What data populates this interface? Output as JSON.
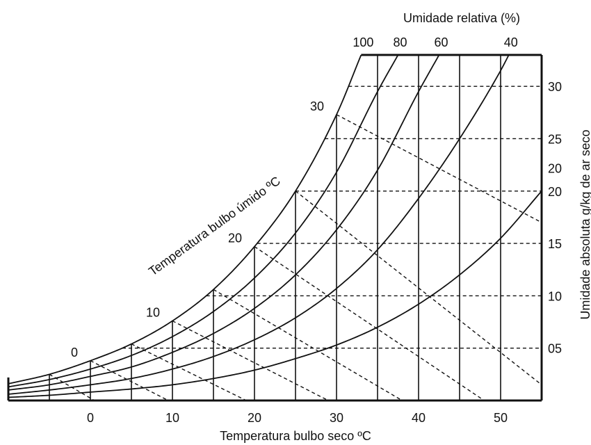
{
  "chart_data": {
    "type": "line",
    "title": "",
    "xlabel": "Temperatura bulbo seco ºC",
    "ylabel": "Umidade absoluta g/kg de ar seco",
    "rh_axis_label": "Umidade relativa (%)",
    "wet_bulb_label": "Temperatura bulbo úmido ºC",
    "xlim": [
      -10,
      55
    ],
    "ylim": [
      0,
      33
    ],
    "x_ticks": [
      {
        "value": 0,
        "label": "0"
      },
      {
        "value": 10,
        "label": "10"
      },
      {
        "value": 20,
        "label": "20"
      },
      {
        "value": 30,
        "label": "30"
      },
      {
        "value": 40,
        "label": "40"
      },
      {
        "value": 50,
        "label": "50"
      }
    ],
    "x_minor_ticks": [
      -5,
      5,
      15,
      25,
      35,
      45
    ],
    "y_ticks": [
      {
        "value": 5,
        "label": "05"
      },
      {
        "value": 10,
        "label": "10"
      },
      {
        "value": 15,
        "label": "15"
      },
      {
        "value": 20,
        "label": "20"
      },
      {
        "value": 25,
        "label": "25"
      },
      {
        "value": 30,
        "label": "30"
      }
    ],
    "y_extra_labels": [
      {
        "value": 22.2,
        "label": "20"
      }
    ],
    "rh_labels": [
      {
        "rh": 100,
        "label": "100"
      },
      {
        "rh": 80,
        "label": "80"
      },
      {
        "rh": 60,
        "label": "60"
      },
      {
        "rh": 40,
        "label": "40"
      }
    ],
    "series": [
      {
        "rh": 100,
        "x": [
          -10,
          -5,
          0,
          5,
          10,
          15,
          20,
          25,
          30,
          33
        ],
        "values": [
          1.6,
          2.5,
          3.8,
          5.4,
          7.6,
          10.6,
          14.7,
          20.0,
          27.3,
          33
        ]
      },
      {
        "rh": 80,
        "x": [
          -10,
          -5,
          0,
          5,
          10,
          15,
          20,
          25,
          30,
          35,
          37.5
        ],
        "values": [
          1.3,
          2.0,
          3.0,
          4.3,
          6.1,
          8.5,
          11.7,
          16.0,
          21.8,
          29.5,
          33
        ]
      },
      {
        "rh": 60,
        "x": [
          -10,
          -5,
          0,
          5,
          10,
          15,
          20,
          25,
          30,
          35,
          40,
          42.5
        ],
        "values": [
          1.0,
          1.5,
          2.3,
          3.2,
          4.6,
          6.4,
          8.8,
          12.0,
          16.3,
          22.0,
          29.5,
          33
        ]
      },
      {
        "rh": 40,
        "x": [
          -10,
          -5,
          0,
          5,
          10,
          15,
          20,
          25,
          30,
          35,
          40,
          45,
          50,
          51
        ],
        "values": [
          0.6,
          1.0,
          1.5,
          2.1,
          3.0,
          4.2,
          5.8,
          7.9,
          10.7,
          14.4,
          19.3,
          25.0,
          31.5,
          33
        ]
      },
      {
        "rh": 20,
        "x": [
          -10,
          -5,
          0,
          5,
          10,
          15,
          20,
          25,
          30,
          35,
          40,
          45,
          50,
          55
        ],
        "values": [
          0.3,
          0.5,
          0.8,
          1.1,
          1.5,
          2.1,
          2.9,
          4.0,
          5.3,
          7.0,
          9.2,
          12.0,
          15.5,
          20.0
        ]
      }
    ],
    "wet_bulb_lines": [
      {
        "label": "0",
        "x": [
          0,
          9.5
        ],
        "values": [
          3.8,
          0
        ]
      },
      {
        "label": "10",
        "x": [
          10,
          29
        ],
        "values": [
          7.6,
          0
        ]
      },
      {
        "label": "20",
        "x": [
          20,
          48
        ],
        "values": [
          14.7,
          0
        ]
      },
      {
        "label": "30",
        "x": [
          30,
          55
        ],
        "values": [
          27.3,
          17
        ]
      }
    ],
    "wet_bulb_lines_unlabeled": [
      {
        "x": [
          -5,
          0.5
        ],
        "values": [
          2.5,
          0
        ]
      },
      {
        "x": [
          5,
          19
        ],
        "values": [
          5.4,
          0
        ]
      },
      {
        "x": [
          15,
          38
        ],
        "values": [
          10.6,
          0
        ]
      },
      {
        "x": [
          25,
          55
        ],
        "values": [
          20.0,
          1.5
        ]
      }
    ],
    "grid": false
  }
}
